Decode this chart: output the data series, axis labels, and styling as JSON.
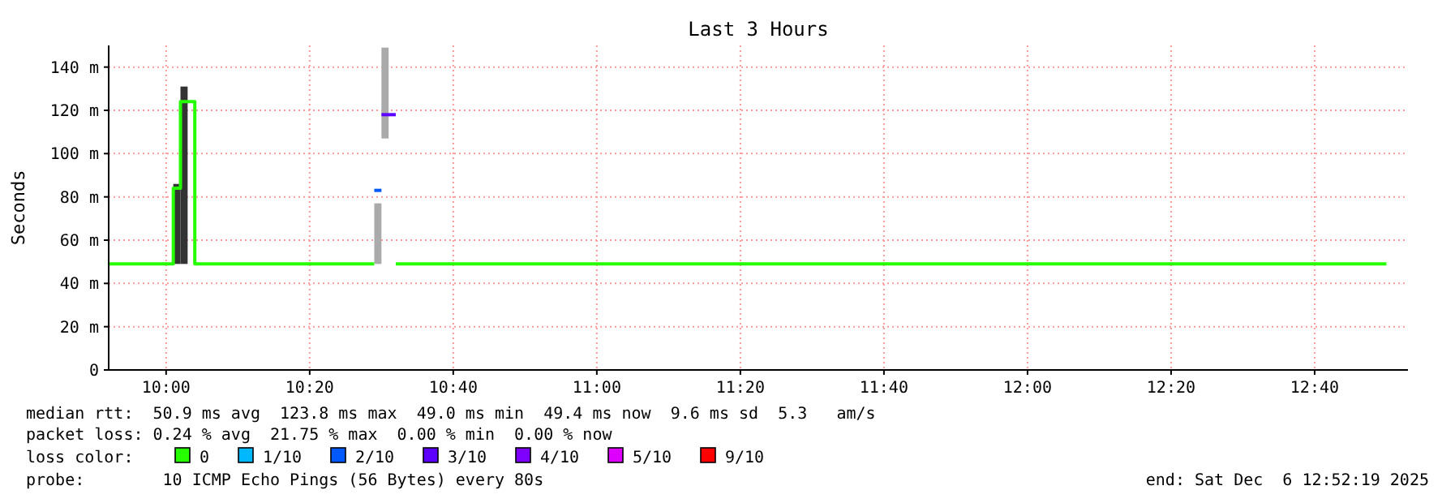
{
  "chart_data": {
    "type": "line",
    "title": "Last 3 Hours",
    "ylabel": "Seconds",
    "xlim": [
      "2025-12-06T09:52",
      "2025-12-06T12:53"
    ],
    "xticks": [
      {
        "value": "2025-12-06T10:00",
        "label": "10:00"
      },
      {
        "value": "2025-12-06T10:20",
        "label": "10:20"
      },
      {
        "value": "2025-12-06T10:40",
        "label": "10:40"
      },
      {
        "value": "2025-12-06T11:00",
        "label": "11:00"
      },
      {
        "value": "2025-12-06T11:20",
        "label": "11:20"
      },
      {
        "value": "2025-12-06T11:40",
        "label": "11:40"
      },
      {
        "value": "2025-12-06T12:00",
        "label": "12:00"
      },
      {
        "value": "2025-12-06T12:20",
        "label": "12:20"
      },
      {
        "value": "2025-12-06T12:40",
        "label": "12:40"
      }
    ],
    "ylim": [
      0,
      150
    ],
    "yticks": [
      0,
      {
        "value": 20,
        "label": "20 m"
      },
      {
        "value": 40,
        "label": "40 m"
      },
      {
        "value": 60,
        "label": "60 m"
      },
      {
        "value": 80,
        "label": "80 m"
      },
      {
        "value": 100,
        "label": "100 m"
      },
      {
        "value": 120,
        "label": "120 m"
      },
      {
        "value": 140,
        "label": "140 m"
      }
    ],
    "grid": true,
    "legend": "bottom",
    "series": [
      {
        "type": "bar",
        "x": [
          "2025-12-06T10:01",
          "2025-12-06T10:02",
          "2025-12-06T10:29",
          "2025-12-06T10:30"
        ],
        "base": [
          49,
          49,
          49,
          107
        ],
        "values": [
          37,
          82,
          28,
          42
        ],
        "colors": [
          "#333333",
          "#333333",
          "#aaaaaa",
          "#aaaaaa"
        ]
      },
      {
        "name": "0",
        "color": "#26ff00",
        "x": [
          "2025-12-06T09:52",
          "2025-12-06T10:01",
          "2025-12-06T10:01",
          "2025-12-06T10:02",
          "2025-12-06T10:02",
          "2025-12-06T10:04",
          "2025-12-06T10:04",
          "2025-12-06T10:29",
          "2025-12-06T10:30",
          "2025-12-06T10:32",
          "2025-12-06T12:50"
        ],
        "values": [
          49,
          49,
          84,
          84,
          124,
          124,
          49,
          49,
          null,
          49,
          49
        ]
      },
      {
        "name": "1/10",
        "color": "#00b8ff"
      },
      {
        "name": "2/10",
        "color": "#0059ff",
        "x": [
          "2025-12-06T10:29",
          "2025-12-06T10:30"
        ],
        "values": [
          83,
          83
        ]
      },
      {
        "name": "3/10",
        "color": "#5e00ff",
        "x": [
          "2025-12-06T10:30",
          "2025-12-06T10:32"
        ],
        "values": [
          118,
          118
        ]
      },
      {
        "name": "4/10",
        "color": "#7e00ff"
      },
      {
        "name": "5/10",
        "color": "#dd00ff"
      },
      {
        "name": "9/10",
        "color": "#ff0000"
      }
    ],
    "annotations": [
      "median rtt:  50.9 ms avg  123.8 ms max  49.0 ms min  49.4 ms now  9.6 ms sd  5.3   am/s",
      "packet loss: 0.24 % avg  21.75 % max  0.00 % min  0.00 % now",
      "loss color:",
      "probe:        10 ICMP Echo Pings (56 Bytes) every 80s",
      "end: Sat Dec  6 12:52:19 2025"
    ]
  }
}
